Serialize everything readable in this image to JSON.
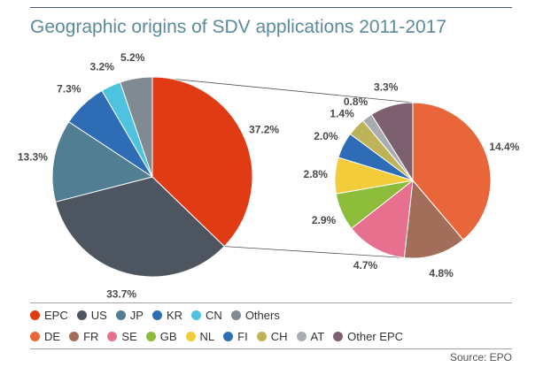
{
  "title": "Geographic origins of SDV applications 2011-2017",
  "source": "Source: EPO",
  "chart_data": [
    {
      "type": "pie",
      "categories": [
        "EPC",
        "US",
        "JP",
        "KR",
        "CN",
        "Others"
      ],
      "values": [
        37.2,
        33.7,
        13.3,
        7.3,
        3.2,
        5.2
      ],
      "labels": [
        "37.2%",
        "33.7%",
        "13.3%",
        "7.3%",
        "3.2%",
        "5.2%"
      ],
      "colors": [
        "#e03b14",
        "#4d5660",
        "#527e93",
        "#2e6db5",
        "#4ec3e0",
        "#7f8a93"
      ]
    },
    {
      "type": "pie",
      "categories": [
        "DE",
        "FR",
        "SE",
        "GB",
        "NL",
        "FI",
        "CH",
        "AT",
        "Other EPC"
      ],
      "values": [
        14.4,
        4.8,
        4.7,
        2.9,
        2.8,
        2.0,
        1.4,
        0.8,
        3.3
      ],
      "labels": [
        "14.4%",
        "4.8%",
        "4.7%",
        "2.9%",
        "2.8%",
        "2.0%",
        "1.4%",
        "0.8%",
        "3.3%"
      ],
      "colors": [
        "#e8663a",
        "#a36e59",
        "#e8708f",
        "#8dbb3a",
        "#f2cc3a",
        "#2e6db5",
        "#bfb35a",
        "#a9adb1",
        "#7d6070"
      ]
    }
  ]
}
